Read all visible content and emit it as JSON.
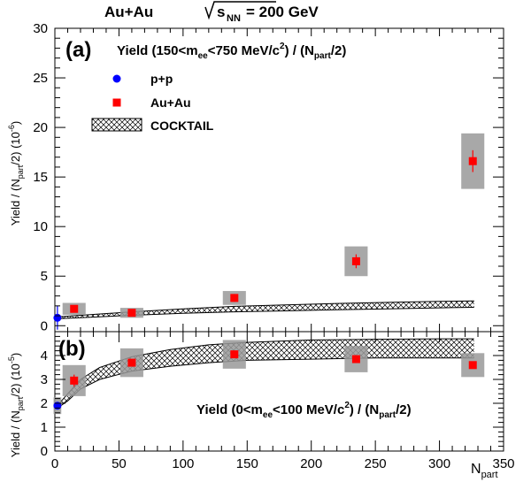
{
  "header": {
    "system": "Au+Au",
    "energy_sqrt": "s",
    "energy_sub": "NN",
    "energy_value": "= 200 GeV"
  },
  "chart_data": [
    {
      "type": "scatter",
      "panel_tag": "(a)",
      "title_parts": [
        "Yield (150<m",
        "ee",
        "<750 MeV/c",
        "2",
        ") / (N",
        "part",
        "/2)"
      ],
      "ylabel_parts": [
        "Yield / (N",
        "part",
        "/2) (10",
        "-6",
        ")"
      ],
      "xlim": [
        0,
        350
      ],
      "ylim": [
        -0.6,
        30
      ],
      "yticks": [
        0,
        5,
        10,
        15,
        20,
        25,
        30
      ],
      "ytick_labels": [
        "0",
        "5",
        "10",
        "15",
        "20",
        "25",
        "30"
      ],
      "series": [
        {
          "name": "p+p",
          "color": "#0000ff",
          "marker": "circle",
          "points": [
            {
              "x": 2,
              "y": 0.8,
              "err": 1.2
            }
          ]
        },
        {
          "name": "Au+Au",
          "color": "#ff0000",
          "marker": "square",
          "points": [
            {
              "x": 15,
              "y": 1.7,
              "err": 0.3,
              "sys_dx": 9,
              "sys": 0.6
            },
            {
              "x": 60,
              "y": 1.3,
              "err": 0.2,
              "sys_dx": 9,
              "sys": 0.5
            },
            {
              "x": 140,
              "y": 2.8,
              "err": 0.4,
              "sys_dx": 9,
              "sys": 0.7
            },
            {
              "x": 235,
              "y": 6.5,
              "err": 0.7,
              "sys_dx": 9,
              "sys": 1.5
            },
            {
              "x": 326,
              "y": 16.6,
              "err": 1.1,
              "sys_dx": 9,
              "sys": 2.8
            }
          ]
        }
      ],
      "cocktail_band": {
        "name": "COCKTAIL",
        "x": [
          2,
          20,
          60,
          100,
          140,
          180,
          220,
          260,
          300,
          327
        ],
        "low": [
          0.7,
          0.8,
          1.05,
          1.25,
          1.4,
          1.5,
          1.6,
          1.7,
          1.8,
          1.85
        ],
        "high": [
          0.9,
          1.05,
          1.4,
          1.7,
          1.95,
          2.1,
          2.25,
          2.35,
          2.45,
          2.5
        ]
      },
      "legend": [
        {
          "label": "p+p",
          "marker": "circle",
          "color": "#0000ff"
        },
        {
          "label": "Au+Au",
          "marker": "square",
          "color": "#ff0000"
        },
        {
          "label": "COCKTAIL",
          "marker": "hatched-box",
          "color": "#000000"
        }
      ]
    },
    {
      "type": "scatter",
      "panel_tag": "(b)",
      "title_parts": [
        "Yield (0<m",
        "ee",
        "<100 MeV/c",
        "2",
        ") / (N",
        "part",
        "/2)"
      ],
      "ylabel_parts": [
        "Yield / (N",
        "part",
        "/2) (10",
        "-5",
        ")"
      ],
      "xlabel_main": "N",
      "xlabel_sub": "part",
      "xlim": [
        0,
        350
      ],
      "ylim": [
        0,
        5
      ],
      "yticks": [
        0,
        1,
        2,
        3,
        4
      ],
      "ytick_labels": [
        "0",
        "1",
        "2",
        "3",
        "4"
      ],
      "xticks": [
        0,
        50,
        100,
        150,
        200,
        250,
        300,
        350
      ],
      "xtick_labels": [
        "0",
        "50",
        "100",
        "150",
        "200",
        "250",
        "300",
        "350"
      ],
      "series": [
        {
          "name": "p+p",
          "color": "#0000ff",
          "marker": "circle",
          "points": [
            {
              "x": 2,
              "y": 1.9,
              "err": 0.15,
              "sys_dx": 3,
              "sys": 0.35
            }
          ]
        },
        {
          "name": "Au+Au",
          "color": "#ff0000",
          "marker": "square",
          "points": [
            {
              "x": 15,
              "y": 2.95,
              "err": 0.25,
              "sys_dx": 9,
              "sys": 0.65
            },
            {
              "x": 60,
              "y": 3.7,
              "err": 0.1,
              "sys_dx": 9,
              "sys": 0.6
            },
            {
              "x": 140,
              "y": 4.05,
              "err": 0.12,
              "sys_dx": 9,
              "sys": 0.6
            },
            {
              "x": 235,
              "y": 3.85,
              "err": 0.1,
              "sys_dx": 9,
              "sys": 0.55
            },
            {
              "x": 326,
              "y": 3.6,
              "err": 0.1,
              "sys_dx": 9,
              "sys": 0.5
            }
          ]
        }
      ],
      "cocktail_band": {
        "name": "COCKTAIL",
        "x": [
          2,
          10,
          20,
          35,
          60,
          90,
          120,
          150,
          200,
          250,
          300,
          327
        ],
        "low": [
          1.8,
          2.1,
          2.6,
          3.0,
          3.35,
          3.55,
          3.7,
          3.8,
          3.85,
          3.9,
          3.9,
          3.9
        ],
        "high": [
          1.9,
          2.4,
          3.0,
          3.5,
          3.95,
          4.25,
          4.45,
          4.55,
          4.65,
          4.68,
          4.7,
          4.7
        ]
      }
    }
  ]
}
